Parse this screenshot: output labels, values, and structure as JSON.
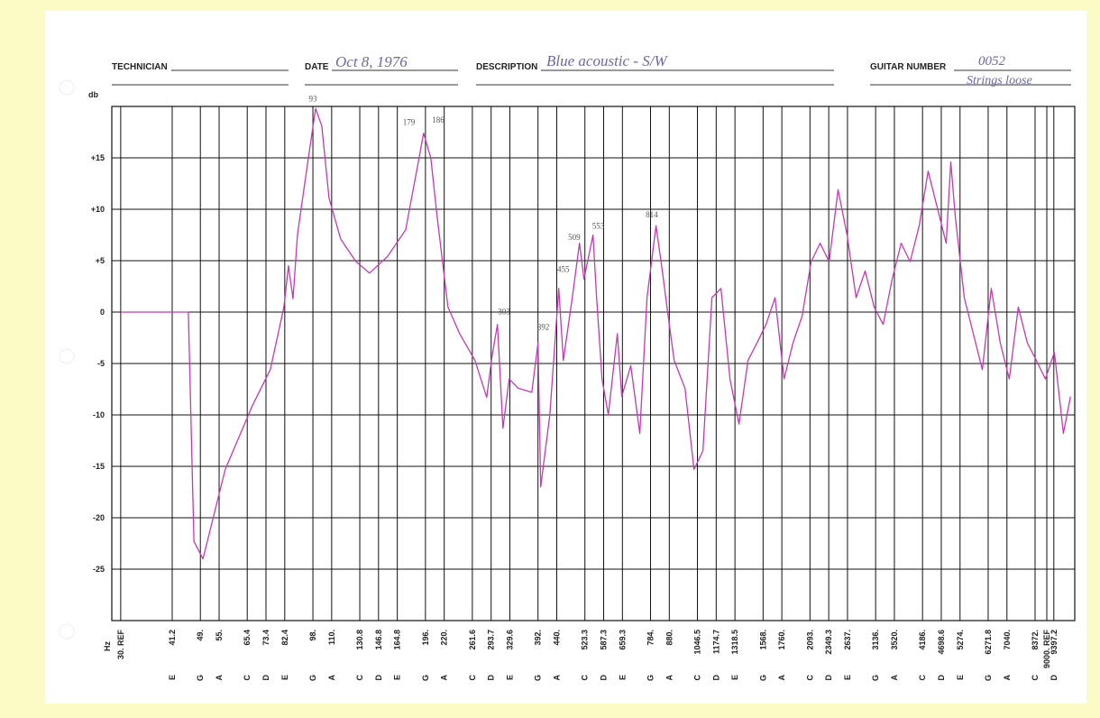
{
  "header": {
    "technician_label": "TECHNICIAN",
    "date_label": "DATE",
    "date": "Oct 8, 1976",
    "description_label": "DESCRIPTION",
    "description": "Blue acoustic - S/W",
    "guitar_number_label": "GUITAR NUMBER",
    "guitar_number": "0052",
    "note": "Strings loose"
  },
  "chart_data": {
    "type": "line",
    "ylabel": "db",
    "xlabel": "Hz",
    "log_x": true,
    "grid": true,
    "xlim": [
      28.4,
      10690
    ],
    "ylim": [
      -30,
      20
    ],
    "yticks": [
      {
        "value": 15,
        "label": "+15"
      },
      {
        "value": 10,
        "label": "+10"
      },
      {
        "value": 5,
        "label": "+5"
      },
      0,
      -5,
      -10,
      -15,
      -20,
      -25
    ],
    "xticks": [
      {
        "value": 30,
        "label": "30. REF"
      },
      41.2,
      {
        "value": 49,
        "label": "49."
      },
      {
        "value": 55,
        "label": "55."
      },
      65.4,
      73.4,
      82.4,
      {
        "value": 98,
        "label": "98."
      },
      {
        "value": 110,
        "label": "110."
      },
      130.8,
      146.8,
      164.8,
      {
        "value": 196,
        "label": "196."
      },
      {
        "value": 220,
        "label": "220."
      },
      261.6,
      293.7,
      329.6,
      {
        "value": 392,
        "label": "392."
      },
      {
        "value": 440,
        "label": "440."
      },
      523.3,
      587.3,
      659.3,
      {
        "value": 784,
        "label": "784."
      },
      {
        "value": 880,
        "label": "880."
      },
      1046.5,
      1174.7,
      1318.5,
      {
        "value": 1568,
        "label": "1568."
      },
      {
        "value": 1760,
        "label": "1760."
      },
      {
        "value": 2093,
        "label": "2093."
      },
      2349.3,
      {
        "value": 2637,
        "label": "2637."
      },
      {
        "value": 3136,
        "label": "3136."
      },
      {
        "value": 3520,
        "label": "3520."
      },
      {
        "value": 4186,
        "label": "4186."
      },
      4698.6,
      {
        "value": 5274,
        "label": "5274."
      },
      6271.8,
      {
        "value": 7040,
        "label": "7040."
      },
      {
        "value": 8372,
        "label": "8372."
      },
      {
        "value": 9000,
        "label": "9000. REF"
      },
      9397.2
    ],
    "x_notes": [
      null,
      "E",
      "G",
      "A",
      "C",
      "D",
      "E",
      "G",
      "A",
      "C",
      "D",
      "E",
      "G",
      "A",
      "C",
      "D",
      "E",
      "G",
      "A",
      "C",
      "D",
      "E",
      "G",
      "A",
      "C",
      "D",
      "E",
      "G",
      "A",
      "C",
      "D",
      "E",
      "G",
      "A",
      "C",
      "D",
      "E",
      "G",
      "A",
      "C",
      null,
      "D"
    ],
    "series": [
      {
        "color": "#c23ab4",
        "x": [
          30,
          45.5,
          47.1,
          49.8,
          57.1,
          67.5,
          75.4,
          82.0,
          84.3,
          86.7,
          89.1,
          94.2,
          99.6,
          103.5,
          108.2,
          116.3,
          127.8,
          138.9,
          155.2,
          173.5,
          188.5,
          193.8,
          202.6,
          210.6,
          225.1,
          242.0,
          265.9,
          285.8,
          295.4,
          305.4,
          315.8,
          328.2,
          347.0,
          377.2,
          392.1,
          398.7,
          421.5,
          445.5,
          458.1,
          484.2,
          506.2,
          520.4,
          550.1,
          562.4,
          581.4,
          604.4,
          638.9,
          656.8,
          694.3,
          733.8,
          767.2,
          811.1,
          843.2,
          867.3,
          906.7,
          969.1,
          1024.6,
          1082.7,
          1144.5,
          1209.6,
          1278.7,
          1351.7,
          1428.8,
          1510.3,
          1596.4,
          1687.5,
          1783.8,
          1885.5,
          1994,
          2108,
          2228,
          2355,
          2489,
          2631,
          2781,
          2940,
          3108,
          3285,
          3472,
          3670,
          3879,
          4101,
          4334,
          4582,
          4843,
          4981,
          5121,
          5414,
          5723,
          6049,
          6394,
          6758,
          7144,
          7552,
          7983,
          8438,
          8920,
          9428,
          9967,
          10415
        ],
        "values": [
          0,
          0,
          -22.3,
          -24.0,
          -15.3,
          -9.1,
          -5.6,
          0.5,
          4.5,
          1.3,
          7.5,
          13.7,
          19.8,
          18.1,
          11.1,
          7.1,
          4.9,
          3.8,
          5.4,
          8.0,
          15.0,
          17.4,
          15.0,
          9.3,
          0.5,
          -2.1,
          -4.7,
          -8.3,
          -4.3,
          -1.2,
          -11.3,
          -6.5,
          -7.4,
          -7.8,
          -3.0,
          -17.0,
          -10.0,
          2.3,
          -4.7,
          1.4,
          6.7,
          3.2,
          7.5,
          1.4,
          -6.5,
          -10.0,
          -2.1,
          -8.2,
          -5.2,
          -11.8,
          1.4,
          8.4,
          4.0,
          0.5,
          -4.7,
          -7.4,
          -15.3,
          -13.5,
          1.4,
          2.3,
          -6.5,
          -10.9,
          -4.7,
          -3.0,
          -1.2,
          1.4,
          -6.5,
          -3.0,
          -0.4,
          4.9,
          6.7,
          4.9,
          11.9,
          7.5,
          1.4,
          4.0,
          0.5,
          -1.2,
          3.2,
          6.7,
          4.9,
          8.4,
          13.7,
          10.2,
          6.7,
          14.6,
          9.3,
          1.4,
          -2.1,
          -5.6,
          2.3,
          -3.0,
          -6.5,
          0.5,
          -3.0,
          -4.7,
          -6.5,
          -3.9,
          -11.8,
          -8.2
        ]
      }
    ],
    "annotations": [
      {
        "text": "93",
        "x": 98,
        "y": 20.5
      },
      {
        "text": "179",
        "x": 177,
        "y": 18.2
      },
      {
        "text": "186",
        "x": 212,
        "y": 18.4
      },
      {
        "text": "303",
        "x": 318,
        "y": -0.2
      },
      {
        "text": "392",
        "x": 405,
        "y": -1.7
      },
      {
        "text": "455",
        "x": 458,
        "y": 3.9
      },
      {
        "text": "509",
        "x": 490,
        "y": 7.0
      },
      {
        "text": "553",
        "x": 568,
        "y": 8.1
      },
      {
        "text": "814",
        "x": 790,
        "y": 9.2
      }
    ]
  }
}
